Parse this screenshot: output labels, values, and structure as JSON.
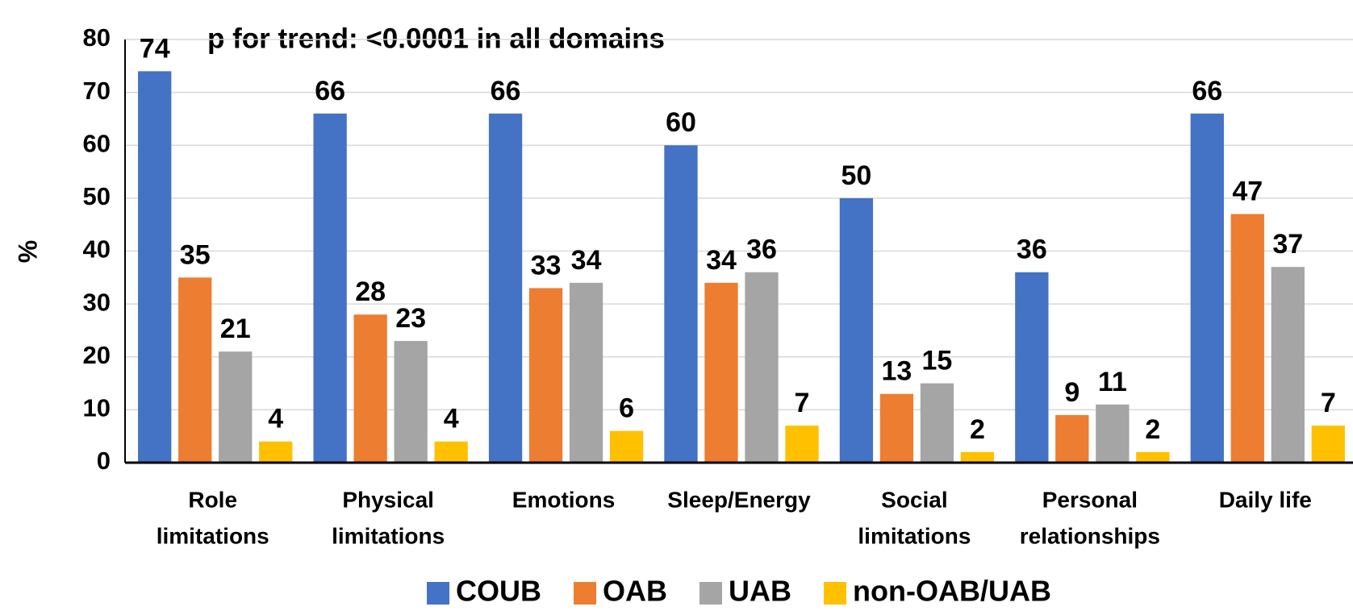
{
  "chart_data": {
    "type": "bar",
    "annotation": "p for trend: <0.0001 in all domains",
    "ylabel": "%",
    "categories": [
      [
        "Role",
        "limitations"
      ],
      [
        "Physical",
        "limitations"
      ],
      [
        "Emotions"
      ],
      [
        "Sleep/Energy"
      ],
      [
        "Social",
        "limitations"
      ],
      [
        "Personal",
        "relationships"
      ],
      [
        "Daily life"
      ]
    ],
    "series": [
      {
        "name": "COUB",
        "color": "#4472c4",
        "values": [
          74,
          66,
          66,
          60,
          50,
          36,
          66
        ]
      },
      {
        "name": "OAB",
        "color": "#ed7d31",
        "values": [
          35,
          28,
          33,
          34,
          13,
          9,
          47
        ]
      },
      {
        "name": "UAB",
        "color": "#a5a5a5",
        "values": [
          21,
          23,
          34,
          36,
          15,
          11,
          37
        ]
      },
      {
        "name": "non-OAB/UAB",
        "color": "#ffc000",
        "values": [
          4,
          4,
          6,
          7,
          2,
          2,
          7
        ]
      }
    ],
    "ylim": [
      0,
      80
    ],
    "yticks": [
      0,
      10,
      20,
      30,
      40,
      50,
      60,
      70,
      80
    ],
    "grid": true,
    "legend": "bottom"
  }
}
